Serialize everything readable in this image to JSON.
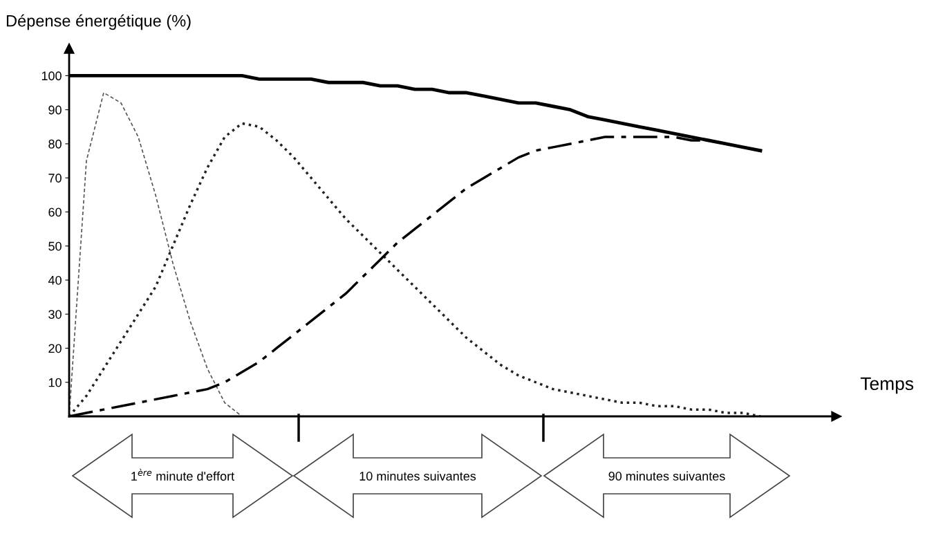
{
  "chart_data": {
    "type": "line",
    "ylabel": "Dépense énergétique (%)",
    "categories": [
      null,
      null,
      null,
      null,
      null,
      null,
      null,
      null,
      null,
      null,
      null,
      null,
      null,
      null,
      null,
      null,
      null,
      null,
      null,
      null,
      null,
      null,
      null,
      null,
      null,
      null,
      null,
      null,
      null,
      null,
      null,
      null,
      null,
      null,
      null,
      null,
      null,
      null,
      null,
      null,
      null
    ],
    "series": [
      {
        "color": "#000000",
        "line_style": "solid",
        "values": [
          100,
          100,
          100,
          100,
          100,
          100,
          100,
          100,
          100,
          100,
          100,
          99,
          99,
          99,
          99,
          98,
          98,
          98,
          97,
          97,
          96,
          96,
          95,
          95,
          94,
          93,
          92,
          92,
          91,
          90,
          88,
          87,
          86,
          85,
          84,
          83,
          82,
          81,
          80,
          79,
          78
        ]
      },
      {
        "color": "#555555",
        "line_style": "dashed",
        "values": [
          0,
          75,
          95,
          92,
          82,
          65,
          45,
          28,
          14,
          4,
          0,
          null,
          null,
          null,
          null,
          null,
          null,
          null,
          null,
          null,
          null,
          null,
          null,
          null,
          null,
          null,
          null,
          null,
          null,
          null,
          null,
          null,
          null,
          null,
          null,
          null,
          null,
          null,
          null,
          null,
          null
        ]
      },
      {
        "color": "#222222",
        "line_style": "dotted",
        "values": [
          0,
          6,
          14,
          22,
          30,
          38,
          50,
          62,
          73,
          82,
          86,
          85,
          81,
          76,
          70,
          64,
          58,
          53,
          48,
          43,
          38,
          33,
          28,
          23,
          19,
          15,
          12,
          10,
          8,
          7,
          6,
          5,
          4,
          4,
          3,
          3,
          2,
          2,
          1,
          1,
          0
        ]
      },
      {
        "color": "#000000",
        "line_style": "dashdot",
        "values": [
          0,
          1,
          2,
          3,
          4,
          5,
          6,
          7,
          8,
          10,
          13,
          16,
          20,
          24,
          28,
          32,
          36,
          41,
          46,
          51,
          55,
          59,
          63,
          67,
          70,
          73,
          76,
          78,
          79,
          80,
          81,
          82,
          82,
          82,
          82,
          82,
          81,
          81,
          80,
          79,
          78
        ]
      }
    ],
    "ylim": [
      0,
      108
    ],
    "yticks": [
      10,
      20,
      30,
      40,
      50,
      60,
      70,
      80,
      90,
      100
    ],
    "grid": false,
    "legend": false,
    "annotations": [
      "Temps",
      "1$^{ère}$ minute d'effort",
      "10 minutes suivantes",
      "90 minutes suivantes"
    ]
  }
}
